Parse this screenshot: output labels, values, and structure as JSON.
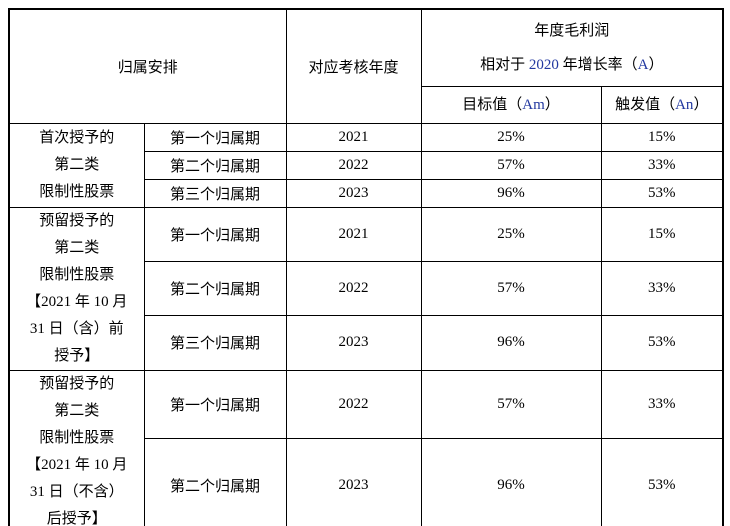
{
  "colors": {
    "highlight_blue": "#2238A0",
    "border_black": "#000000",
    "background": "#ffffff"
  },
  "table": {
    "header": {
      "group_col": "归属安排",
      "year_col": "对应考核年度",
      "growth_line1": "年度毛利润",
      "growth_line2_prefix": "相对于 ",
      "growth_line2_year": "2020",
      "growth_line2_mid": " 年增长率（",
      "growth_line2_code": "A",
      "growth_line2_suffix": "）",
      "target_prefix": "目标值（",
      "target_code": "Am",
      "target_suffix": "）",
      "trigger_prefix": "触发值（",
      "trigger_code": "An",
      "trigger_suffix": "）"
    },
    "groups": [
      {
        "label": "首次授予的\n第二类\n限制性股票",
        "rows": [
          {
            "period": "第一个归属期",
            "year": "2021",
            "target": "25%",
            "trigger": "15%"
          },
          {
            "period": "第二个归属期",
            "year": "2022",
            "target": "57%",
            "trigger": "33%"
          },
          {
            "period": "第三个归属期",
            "year": "2023",
            "target": "96%",
            "trigger": "53%"
          }
        ]
      },
      {
        "label": "预留授予的\n第二类\n限制性股票\n【2021 年 10 月\n31 日（含）前\n授予】",
        "rows": [
          {
            "period": "第一个归属期",
            "year": "2021",
            "target": "25%",
            "trigger": "15%"
          },
          {
            "period": "第二个归属期",
            "year": "2022",
            "target": "57%",
            "trigger": "33%"
          },
          {
            "period": "第三个归属期",
            "year": "2023",
            "target": "96%",
            "trigger": "53%"
          }
        ]
      },
      {
        "label": "预留授予的\n第二类\n限制性股票\n【2021 年 10 月\n31 日（不含）\n后授予】",
        "rows": [
          {
            "period": "第一个归属期",
            "year": "2022",
            "target": "57%",
            "trigger": "33%"
          },
          {
            "period": "第二个归属期",
            "year": "2023",
            "target": "96%",
            "trigger": "53%"
          }
        ]
      }
    ]
  }
}
